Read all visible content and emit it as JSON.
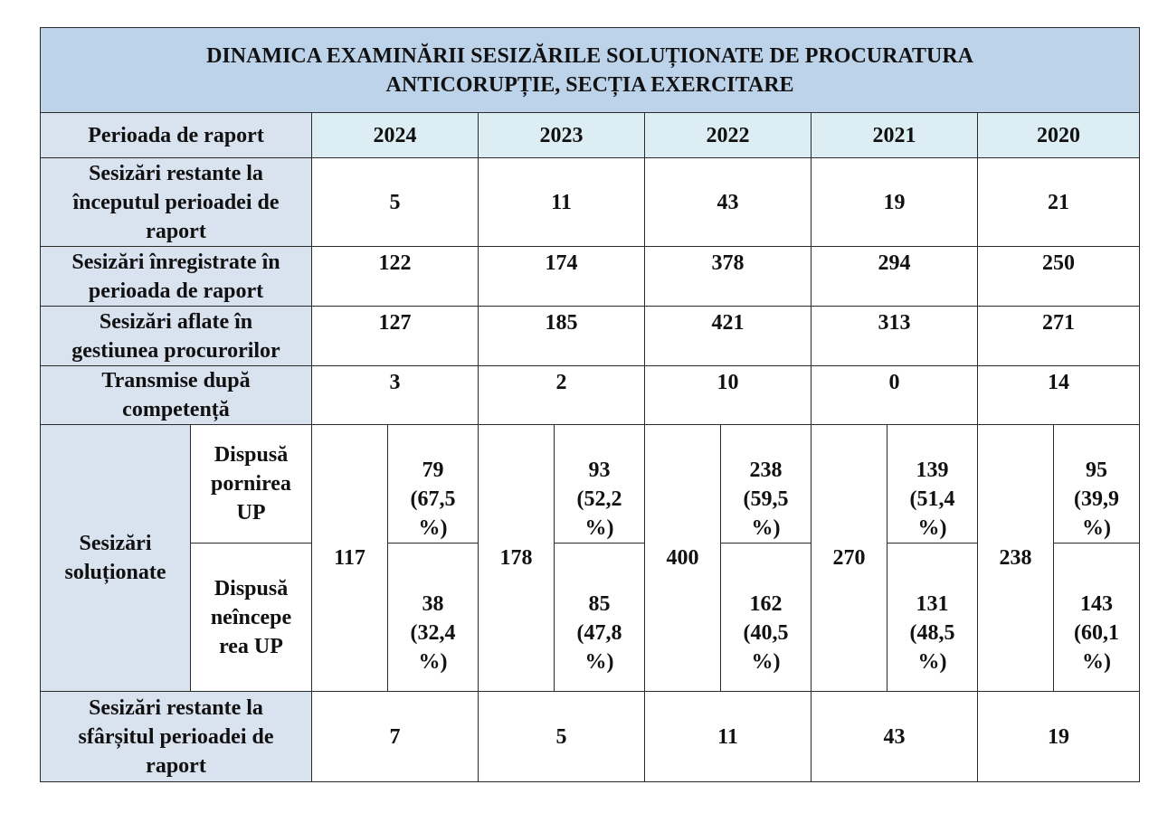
{
  "title": {
    "line1": "DINAMICA EXAMINĂRII SESIZĂRILE SOLUȚIONATE DE PROCURATURA",
    "line2": "ANTICORUPȚIE, SECȚIA EXERCITARE"
  },
  "header": {
    "label": "Perioada de raport",
    "years": [
      "2024",
      "2023",
      "2022",
      "2021",
      "2020"
    ]
  },
  "rows": [
    {
      "label_lines": [
        "Sesizări restante la",
        "începutul perioadei de",
        "raport"
      ],
      "values": [
        "5",
        "11",
        "43",
        "19",
        "21"
      ]
    },
    {
      "label_lines": [
        "Sesizări înregistrate în",
        "perioada de raport"
      ],
      "values": [
        "122",
        "174",
        "378",
        "294",
        "250"
      ]
    },
    {
      "label_lines": [
        "Sesizări aflate în",
        "gestiunea procurorilor"
      ],
      "values": [
        "127",
        "185",
        "421",
        "313",
        "271"
      ]
    },
    {
      "label_lines": [
        "Transmise după",
        "competență"
      ],
      "values": [
        "3",
        "2",
        "10",
        "0",
        "14"
      ]
    }
  ],
  "solutionate": {
    "label_lines": [
      "Sesizări",
      "soluționate"
    ],
    "totals": [
      "117",
      "178",
      "400",
      "270",
      "238"
    ],
    "pornire": {
      "label_lines": [
        "Dispusă",
        "pornirea",
        "UP"
      ],
      "values": [
        [
          "79",
          "(67,5",
          "%)"
        ],
        [
          "93",
          "(52,2",
          "%)"
        ],
        [
          "238",
          "(59,5",
          "%)"
        ],
        [
          "139",
          "(51,4",
          "%)"
        ],
        [
          "95",
          "(39,9",
          "%)"
        ]
      ]
    },
    "neincepere": {
      "label_lines": [
        "Dispusă",
        "neîncepe",
        "rea UP"
      ],
      "values": [
        [
          "38",
          "(32,4",
          "%)"
        ],
        [
          "85",
          "(47,8",
          "%)"
        ],
        [
          "162",
          "(40,5",
          "%)"
        ],
        [
          "131",
          "(48,5",
          "%)"
        ],
        [
          "143",
          "(60,1",
          "%)"
        ]
      ]
    }
  },
  "final": {
    "label_lines": [
      "Sesizări restante la",
      "sfârșitul perioadei de",
      "raport"
    ],
    "values": [
      "7",
      "5",
      "11",
      "43",
      "19"
    ]
  }
}
